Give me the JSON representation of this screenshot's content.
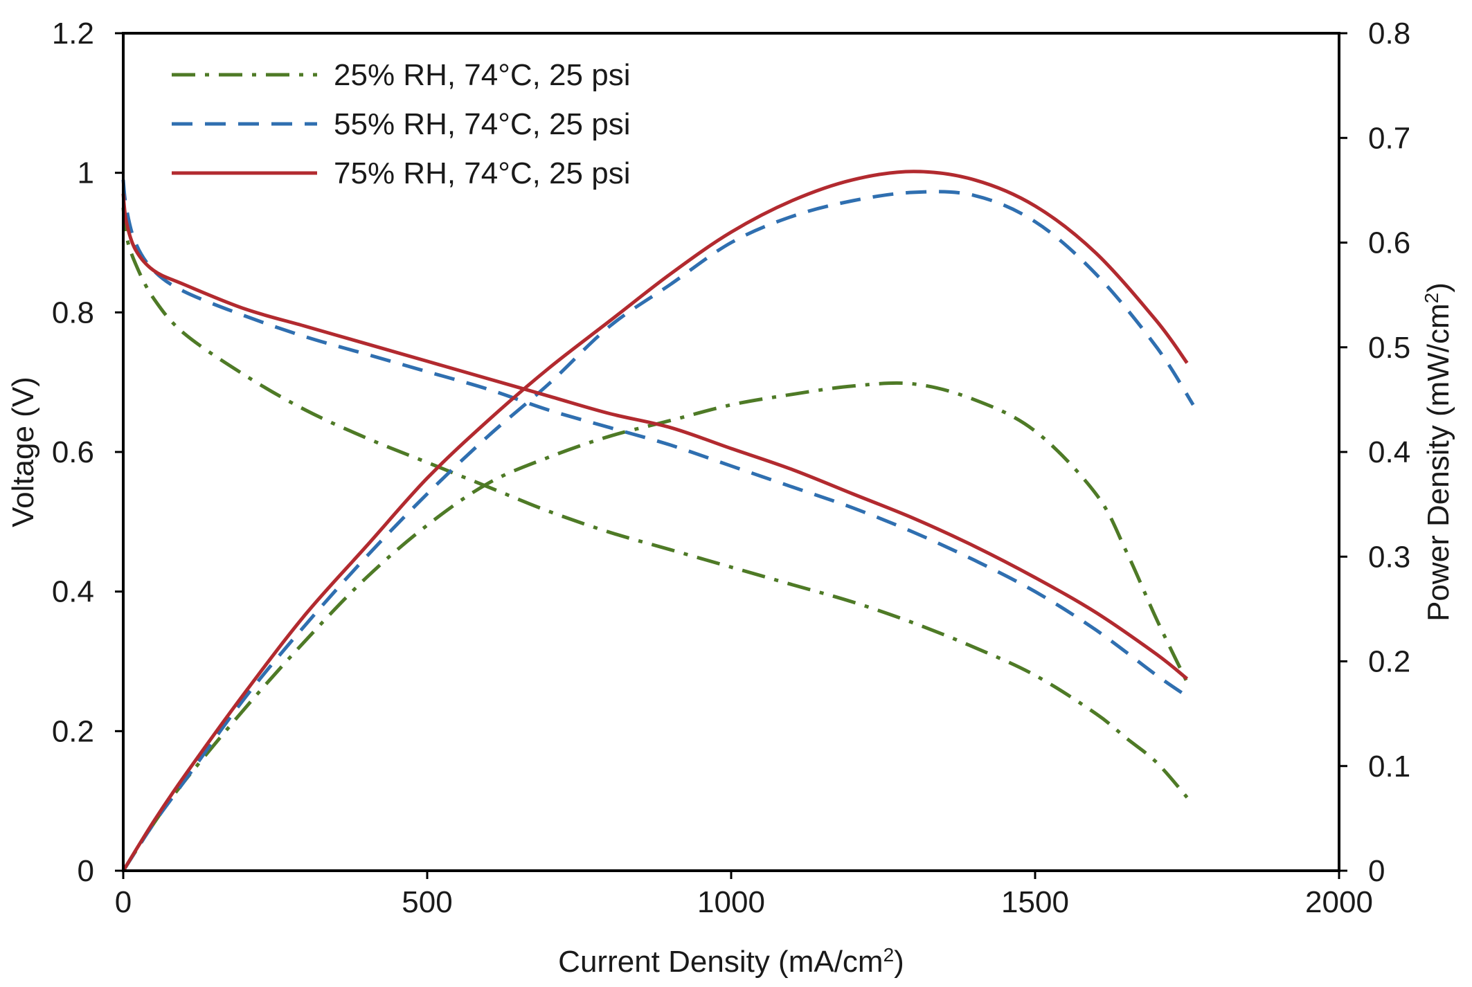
{
  "chart_data": {
    "type": "line",
    "title": "",
    "xlabel": "Current Density (mA/cm",
    "xlabel_sup": "2",
    "xlabel_end": ")",
    "ylabel": "Voltage (V)",
    "y2label": "Power Density (mW/cm",
    "y2label_sup": "2",
    "y2label_end": ")",
    "xlim": [
      0,
      2000
    ],
    "ylim": [
      0,
      1.2
    ],
    "y2lim": [
      0,
      0.8
    ],
    "xticks": [
      "0",
      "500",
      "1000",
      "1500",
      "2000"
    ],
    "yticks": [
      "0",
      "0.2",
      "0.4",
      "0.6",
      "0.8",
      "1",
      "1.2"
    ],
    "y2ticks": [
      "0",
      "0.1",
      "0.2",
      "0.3",
      "0.4",
      "0.5",
      "0.6",
      "0.7",
      "0.8"
    ],
    "grid": false,
    "legend_position": "top-left",
    "series": [
      {
        "name": "25% RH, 74°C, 25 psi",
        "color": "#4e7a26",
        "style": "dash-dot",
        "axis": "left",
        "quantity": "voltage",
        "x": [
          0,
          5,
          20,
          50,
          100,
          200,
          300,
          400,
          500,
          600,
          700,
          800,
          900,
          1000,
          1100,
          1200,
          1300,
          1400,
          1500,
          1600,
          1650,
          1700,
          1750
        ],
        "y": [
          0.95,
          0.91,
          0.87,
          0.82,
          0.77,
          0.71,
          0.66,
          0.62,
          0.585,
          0.55,
          0.515,
          0.485,
          0.46,
          0.435,
          0.41,
          0.385,
          0.355,
          0.32,
          0.28,
          0.225,
          0.19,
          0.155,
          0.105
        ]
      },
      {
        "name": "25% RH, 74°C, 25 psi",
        "color": "#4e7a26",
        "style": "dash-dot",
        "axis": "right",
        "quantity": "power",
        "x": [
          0,
          50,
          100,
          200,
          300,
          400,
          500,
          600,
          700,
          800,
          900,
          1000,
          1100,
          1200,
          1300,
          1400,
          1500,
          1600,
          1650,
          1700,
          1750
        ],
        "y": [
          0,
          0.045,
          0.085,
          0.155,
          0.22,
          0.28,
          0.33,
          0.37,
          0.395,
          0.415,
          0.43,
          0.445,
          0.455,
          0.463,
          0.465,
          0.45,
          0.42,
          0.36,
          0.305,
          0.24,
          0.18
        ]
      },
      {
        "name": "55% RH, 74°C, 25 psi",
        "color": "#2f6fb0",
        "style": "dashed",
        "axis": "left",
        "quantity": "voltage",
        "x": [
          0,
          5,
          20,
          50,
          100,
          200,
          300,
          400,
          500,
          600,
          700,
          800,
          900,
          1000,
          1100,
          1200,
          1300,
          1400,
          1500,
          1600,
          1700,
          1750
        ],
        "y": [
          0.99,
          0.95,
          0.9,
          0.86,
          0.83,
          0.795,
          0.765,
          0.74,
          0.715,
          0.69,
          0.66,
          0.635,
          0.61,
          0.58,
          0.55,
          0.52,
          0.485,
          0.445,
          0.4,
          0.345,
          0.28,
          0.25
        ]
      },
      {
        "name": "55% RH, 74°C, 25 psi",
        "color": "#2f6fb0",
        "style": "dashed",
        "axis": "right",
        "quantity": "power",
        "x": [
          0,
          50,
          100,
          200,
          300,
          400,
          500,
          600,
          700,
          800,
          900,
          1000,
          1100,
          1200,
          1300,
          1400,
          1500,
          1600,
          1700,
          1760
        ],
        "y": [
          0,
          0.045,
          0.085,
          0.165,
          0.235,
          0.3,
          0.36,
          0.415,
          0.465,
          0.52,
          0.56,
          0.6,
          0.625,
          0.64,
          0.648,
          0.645,
          0.62,
          0.57,
          0.5,
          0.445
        ]
      },
      {
        "name": "75% RH, 74°C, 25 psi",
        "color": "#b22a2f",
        "style": "solid",
        "axis": "left",
        "quantity": "voltage",
        "x": [
          0,
          5,
          20,
          50,
          100,
          200,
          300,
          400,
          500,
          600,
          700,
          800,
          900,
          1000,
          1100,
          1200,
          1300,
          1400,
          1500,
          1600,
          1700,
          1750
        ],
        "y": [
          0.97,
          0.93,
          0.89,
          0.86,
          0.84,
          0.805,
          0.78,
          0.755,
          0.73,
          0.705,
          0.68,
          0.655,
          0.635,
          0.605,
          0.575,
          0.54,
          0.505,
          0.465,
          0.42,
          0.37,
          0.31,
          0.275
        ]
      },
      {
        "name": "75% RH, 74°C, 25 psi",
        "color": "#b22a2f",
        "style": "solid",
        "axis": "right",
        "quantity": "power",
        "x": [
          0,
          50,
          100,
          200,
          300,
          400,
          500,
          600,
          700,
          800,
          900,
          1000,
          1100,
          1200,
          1300,
          1400,
          1500,
          1600,
          1700,
          1750
        ],
        "y": [
          0,
          0.047,
          0.09,
          0.17,
          0.245,
          0.31,
          0.375,
          0.43,
          0.48,
          0.525,
          0.57,
          0.61,
          0.64,
          0.66,
          0.668,
          0.66,
          0.635,
          0.59,
          0.525,
          0.485
        ]
      }
    ]
  }
}
